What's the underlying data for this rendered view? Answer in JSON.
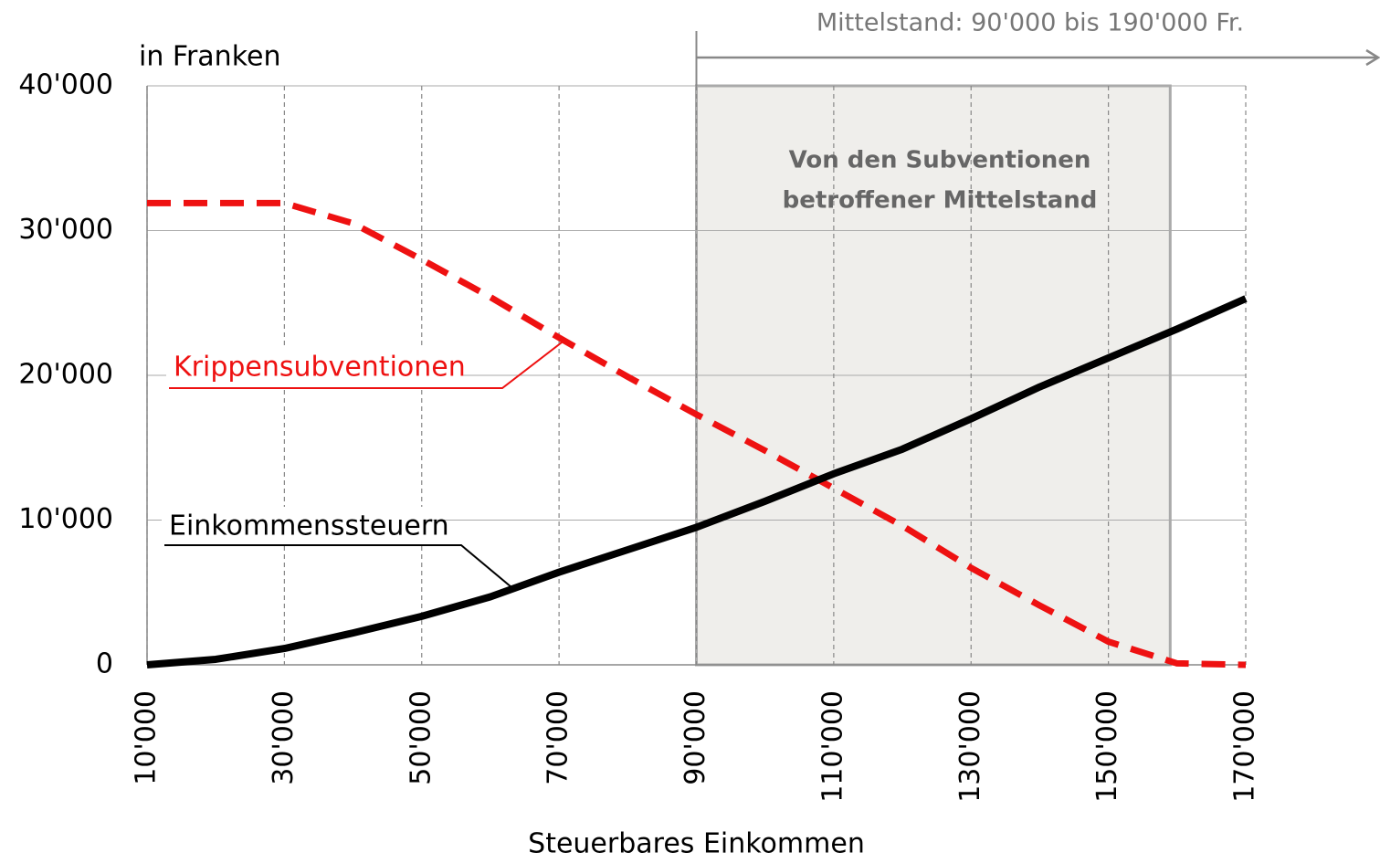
{
  "chart_data": {
    "type": "line",
    "y_axis_label": "in Franken",
    "x_axis_label": "Steuerbares Einkommen",
    "xlim": [
      10000,
      170000
    ],
    "ylim": [
      0,
      40000
    ],
    "xticks": [
      {
        "value": 10000,
        "label": "10'000"
      },
      {
        "value": 30000,
        "label": "30'000"
      },
      {
        "value": 50000,
        "label": "50'000"
      },
      {
        "value": 70000,
        "label": "70'000"
      },
      {
        "value": 90000,
        "label": "90'000"
      },
      {
        "value": 110000,
        "label": "110'000"
      },
      {
        "value": 130000,
        "label": "130'000"
      },
      {
        "value": 150000,
        "label": "150'000"
      },
      {
        "value": 170000,
        "label": "170'000"
      }
    ],
    "yticks": [
      0,
      {
        "value": 10000,
        "label": "10'000"
      },
      {
        "value": 20000,
        "label": "20'000"
      },
      {
        "value": 30000,
        "label": "30'000"
      },
      {
        "value": 40000,
        "label": "40'000"
      }
    ],
    "grid": true,
    "x": [
      10000,
      20000,
      30000,
      40000,
      50000,
      60000,
      70000,
      80000,
      90000,
      100000,
      110000,
      120000,
      130000,
      140000,
      150000,
      160000,
      170000
    ],
    "series": [
      {
        "name": "Krippensubventionen",
        "color": "#ee1111",
        "dashed": true,
        "values": [
          31900,
          31900,
          31900,
          30500,
          28000,
          25400,
          22600,
          19900,
          17300,
          14800,
          12200,
          9600,
          6700,
          4100,
          1600,
          100,
          0
        ]
      },
      {
        "name": "Einkommenssteuern",
        "color": "#000000",
        "dashed": false,
        "values": [
          0,
          380,
          1130,
          2200,
          3350,
          4700,
          6400,
          7950,
          9500,
          11300,
          13200,
          14900,
          17000,
          19200,
          21200,
          23200,
          25300
        ]
      }
    ],
    "shaded_region": {
      "xlim": [
        90000,
        159000
      ],
      "color": "#efeeeb",
      "label": [
        "Von den Subventionen",
        "betroffener Mittelstand"
      ]
    },
    "annotation": {
      "text": "Mittelstand: 90'000 bis 190'000 Fr.",
      "x": 90000
    }
  }
}
